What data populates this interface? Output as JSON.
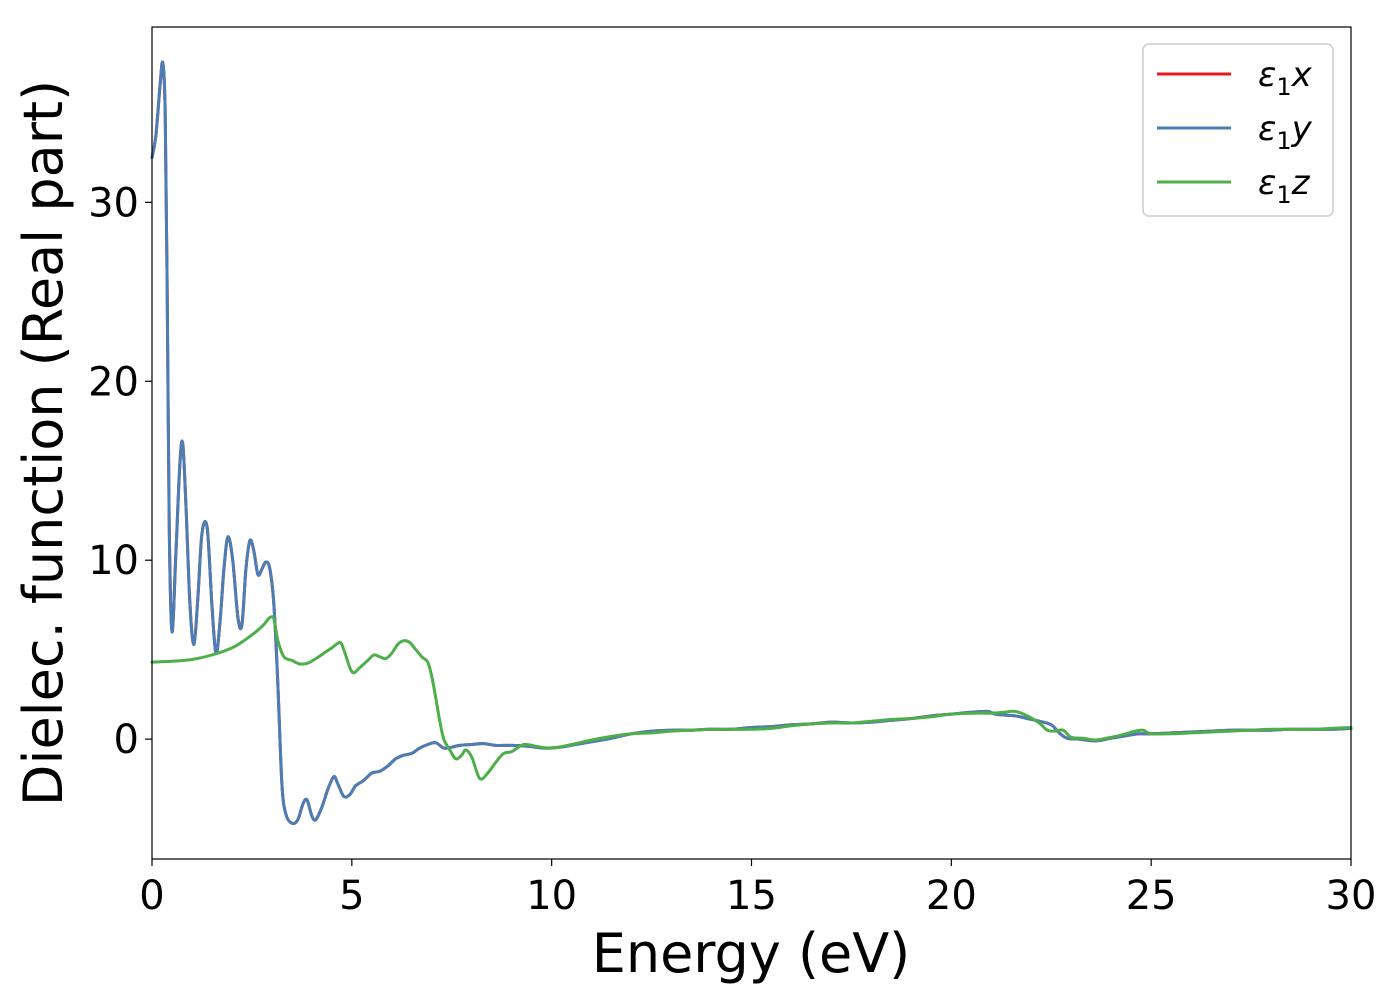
{
  "chart_data": {
    "type": "line",
    "title": "",
    "xlabel": "Energy (eV)",
    "ylabel": "Dielec. function (Real part)",
    "xlim": [
      0,
      30
    ],
    "ylim": [
      -6.7,
      39.8
    ],
    "xticks": [
      0,
      5,
      10,
      15,
      20,
      25,
      30
    ],
    "yticks": [
      0,
      10,
      20,
      30
    ],
    "xtick_labels": [
      "0",
      "5",
      "10",
      "15",
      "20",
      "25",
      "30"
    ],
    "ytick_labels": [
      "0",
      "10",
      "20",
      "30"
    ],
    "grid": false,
    "legend_position": "top-right",
    "series": [
      {
        "name": "ε1x",
        "legend_base": "ε",
        "legend_sub": "1",
        "legend_var": "x",
        "color": "#e41a1c",
        "x": [
          0,
          0.1,
          0.2,
          0.27,
          0.33,
          0.38,
          0.43,
          0.5,
          0.6,
          0.7,
          0.77,
          0.85,
          0.95,
          1.05,
          1.15,
          1.25,
          1.38,
          1.5,
          1.6,
          1.7,
          1.8,
          1.9,
          2.02,
          2.15,
          2.25,
          2.35,
          2.45,
          2.55,
          2.65,
          2.75,
          2.85,
          2.95,
          3.05,
          3.15,
          3.25,
          3.35,
          3.5,
          3.65,
          3.78,
          3.88,
          4.0,
          4.1,
          4.25,
          4.4,
          4.55,
          4.65,
          4.8,
          4.95,
          5.1,
          5.3,
          5.5,
          5.7,
          5.9,
          6.1,
          6.3,
          6.5,
          6.7,
          6.9,
          7.1,
          7.3,
          7.5,
          7.7,
          8.0,
          8.3,
          8.6,
          9.0,
          9.4,
          9.8,
          10.2,
          10.6,
          11.0,
          11.5,
          12.0,
          12.5,
          13.0,
          13.5,
          14.0,
          14.5,
          15.0,
          15.5,
          16.0,
          16.5,
          17.0,
          17.5,
          18.0,
          18.5,
          19.0,
          19.5,
          20.0,
          20.5,
          20.9,
          21.1,
          21.3,
          21.6,
          21.9,
          22.2,
          22.5,
          22.7,
          22.9,
          23.2,
          23.6,
          24.0,
          24.4,
          24.7,
          25.0,
          25.5,
          26.0,
          26.5,
          27.0,
          27.5,
          28.0,
          28.5,
          29.0,
          29.5,
          30.0
        ],
        "y": [
          32.5,
          33.8,
          36.5,
          37.8,
          35.0,
          25.0,
          12.0,
          6.0,
          10.5,
          15.5,
          16.5,
          13.0,
          7.5,
          5.3,
          8.0,
          11.5,
          11.8,
          7.5,
          4.8,
          6.5,
          9.5,
          11.3,
          10.0,
          6.8,
          6.4,
          9.5,
          11.1,
          10.5,
          9.2,
          9.5,
          9.9,
          9.5,
          7.5,
          3.0,
          -2.5,
          -4.2,
          -4.7,
          -4.5,
          -3.6,
          -3.4,
          -4.3,
          -4.5,
          -3.8,
          -2.8,
          -2.1,
          -2.5,
          -3.2,
          -3.1,
          -2.6,
          -2.3,
          -1.9,
          -1.8,
          -1.5,
          -1.1,
          -0.9,
          -0.8,
          -0.5,
          -0.3,
          -0.2,
          -0.5,
          -0.45,
          -0.35,
          -0.3,
          -0.25,
          -0.35,
          -0.35,
          -0.4,
          -0.5,
          -0.45,
          -0.3,
          -0.15,
          0.05,
          0.3,
          0.45,
          0.5,
          0.5,
          0.55,
          0.55,
          0.65,
          0.7,
          0.8,
          0.85,
          0.95,
          0.9,
          0.95,
          1.05,
          1.15,
          1.3,
          1.4,
          1.5,
          1.55,
          1.4,
          1.35,
          1.3,
          1.15,
          1.0,
          0.8,
          0.35,
          0.05,
          0.0,
          -0.1,
          0.05,
          0.2,
          0.3,
          0.3,
          0.35,
          0.4,
          0.45,
          0.5,
          0.5,
          0.5,
          0.55,
          0.55,
          0.55,
          0.6
        ]
      },
      {
        "name": "ε1y",
        "legend_base": "ε",
        "legend_sub": "1",
        "legend_var": "y",
        "color": "#4a7eb5",
        "x": [
          0,
          0.1,
          0.2,
          0.27,
          0.33,
          0.38,
          0.43,
          0.5,
          0.6,
          0.7,
          0.77,
          0.85,
          0.95,
          1.05,
          1.15,
          1.25,
          1.38,
          1.5,
          1.6,
          1.7,
          1.8,
          1.9,
          2.02,
          2.15,
          2.25,
          2.35,
          2.45,
          2.55,
          2.65,
          2.75,
          2.85,
          2.95,
          3.05,
          3.15,
          3.25,
          3.35,
          3.5,
          3.65,
          3.78,
          3.88,
          4.0,
          4.1,
          4.25,
          4.4,
          4.55,
          4.65,
          4.8,
          4.95,
          5.1,
          5.3,
          5.5,
          5.7,
          5.9,
          6.1,
          6.3,
          6.5,
          6.7,
          6.9,
          7.1,
          7.3,
          7.5,
          7.7,
          8.0,
          8.3,
          8.6,
          9.0,
          9.4,
          9.8,
          10.2,
          10.6,
          11.0,
          11.5,
          12.0,
          12.5,
          13.0,
          13.5,
          14.0,
          14.5,
          15.0,
          15.5,
          16.0,
          16.5,
          17.0,
          17.5,
          18.0,
          18.5,
          19.0,
          19.5,
          20.0,
          20.5,
          20.9,
          21.1,
          21.3,
          21.6,
          21.9,
          22.2,
          22.5,
          22.7,
          22.9,
          23.2,
          23.6,
          24.0,
          24.4,
          24.7,
          25.0,
          25.5,
          26.0,
          26.5,
          27.0,
          27.5,
          28.0,
          28.5,
          29.0,
          29.5,
          30.0
        ],
        "y": [
          32.5,
          33.8,
          36.5,
          37.8,
          35.0,
          25.0,
          12.0,
          6.0,
          10.5,
          15.5,
          16.5,
          13.0,
          7.5,
          5.3,
          8.0,
          11.5,
          11.8,
          7.5,
          4.8,
          6.5,
          9.5,
          11.3,
          10.0,
          6.8,
          6.4,
          9.5,
          11.1,
          10.5,
          9.2,
          9.5,
          9.9,
          9.5,
          7.5,
          3.0,
          -2.5,
          -4.2,
          -4.7,
          -4.5,
          -3.6,
          -3.4,
          -4.3,
          -4.5,
          -3.8,
          -2.8,
          -2.1,
          -2.5,
          -3.2,
          -3.1,
          -2.6,
          -2.3,
          -1.9,
          -1.8,
          -1.5,
          -1.1,
          -0.9,
          -0.8,
          -0.5,
          -0.3,
          -0.2,
          -0.5,
          -0.45,
          -0.35,
          -0.3,
          -0.25,
          -0.35,
          -0.35,
          -0.4,
          -0.5,
          -0.45,
          -0.3,
          -0.15,
          0.05,
          0.3,
          0.45,
          0.5,
          0.5,
          0.55,
          0.55,
          0.65,
          0.7,
          0.8,
          0.85,
          0.95,
          0.9,
          0.95,
          1.05,
          1.15,
          1.3,
          1.4,
          1.5,
          1.55,
          1.4,
          1.35,
          1.3,
          1.15,
          1.0,
          0.8,
          0.35,
          0.05,
          0.0,
          -0.1,
          0.05,
          0.2,
          0.3,
          0.3,
          0.35,
          0.4,
          0.45,
          0.5,
          0.5,
          0.5,
          0.55,
          0.55,
          0.55,
          0.6
        ]
      },
      {
        "name": "ε1z",
        "legend_base": "ε",
        "legend_sub": "1",
        "legend_var": "z",
        "color": "#4daf4a",
        "x": [
          0,
          0.5,
          1.0,
          1.5,
          2.0,
          2.3,
          2.6,
          2.8,
          2.95,
          3.05,
          3.15,
          3.3,
          3.5,
          3.7,
          3.9,
          4.1,
          4.3,
          4.5,
          4.7,
          4.8,
          4.95,
          5.05,
          5.2,
          5.4,
          5.55,
          5.7,
          5.85,
          6.0,
          6.15,
          6.3,
          6.45,
          6.6,
          6.75,
          6.9,
          7.0,
          7.1,
          7.2,
          7.3,
          7.45,
          7.6,
          7.75,
          7.85,
          8.0,
          8.2,
          8.4,
          8.6,
          8.8,
          9.0,
          9.3,
          9.6,
          10.0,
          10.5,
          11.0,
          11.5,
          12.0,
          12.5,
          13.0,
          13.5,
          14.0,
          14.5,
          15.0,
          15.5,
          16.0,
          16.5,
          17.0,
          17.5,
          18.0,
          18.5,
          19.0,
          19.5,
          20.0,
          20.5,
          21.0,
          21.3,
          21.6,
          21.9,
          22.2,
          22.4,
          22.6,
          22.8,
          23.0,
          23.3,
          23.6,
          24.0,
          24.3,
          24.6,
          24.8,
          25.0,
          25.5,
          26.0,
          26.5,
          27.0,
          27.5,
          28.0,
          28.5,
          29.0,
          29.5,
          30.0
        ],
        "y": [
          4.3,
          4.35,
          4.45,
          4.7,
          5.1,
          5.5,
          6.0,
          6.4,
          6.8,
          6.7,
          5.5,
          4.6,
          4.4,
          4.2,
          4.25,
          4.5,
          4.8,
          5.1,
          5.4,
          5.0,
          4.0,
          3.7,
          4.0,
          4.4,
          4.7,
          4.6,
          4.5,
          4.8,
          5.3,
          5.5,
          5.4,
          5.0,
          4.6,
          4.3,
          3.5,
          2.3,
          1.0,
          0.0,
          -0.6,
          -1.1,
          -0.9,
          -0.6,
          -1.0,
          -2.2,
          -1.9,
          -1.3,
          -0.8,
          -0.7,
          -0.3,
          -0.4,
          -0.5,
          -0.3,
          -0.05,
          0.15,
          0.3,
          0.35,
          0.45,
          0.5,
          0.55,
          0.55,
          0.55,
          0.6,
          0.75,
          0.85,
          0.9,
          0.9,
          1.0,
          1.1,
          1.15,
          1.25,
          1.4,
          1.45,
          1.45,
          1.5,
          1.55,
          1.3,
          0.9,
          0.5,
          0.45,
          0.5,
          0.1,
          0.05,
          -0.05,
          0.1,
          0.25,
          0.45,
          0.5,
          0.3,
          0.3,
          0.35,
          0.4,
          0.45,
          0.5,
          0.55,
          0.55,
          0.55,
          0.6,
          0.65
        ]
      }
    ]
  }
}
